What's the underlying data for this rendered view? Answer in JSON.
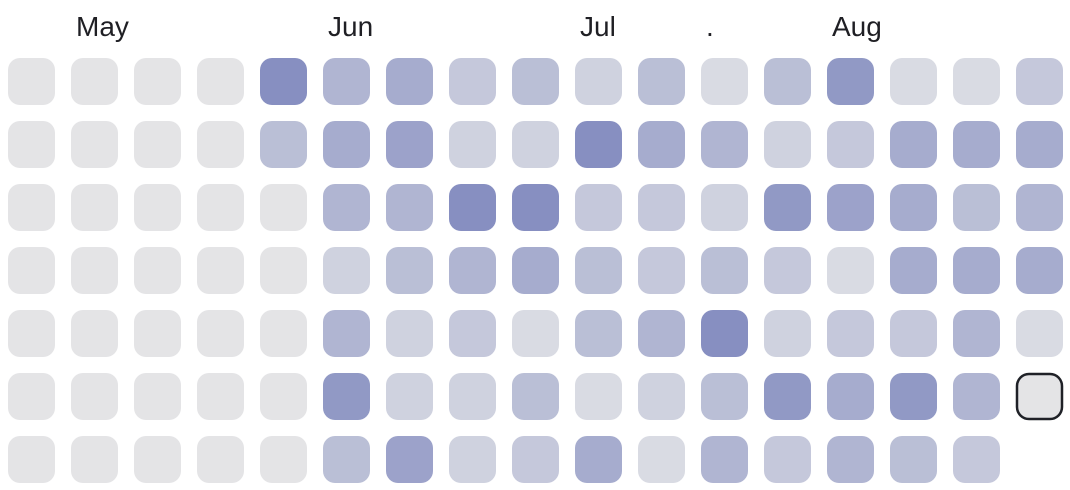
{
  "chart_data": {
    "type": "heatmap",
    "title": "",
    "xlabel": "",
    "ylabel": "",
    "legend": "none",
    "grid": false,
    "month_labels": [
      {
        "text": "May",
        "week": 1
      },
      {
        "text": "Jun",
        "week": 5
      },
      {
        "text": "Jul",
        "week": 9
      },
      {
        "text": ".",
        "week": 11
      },
      {
        "text": "Aug",
        "week": 13
      }
    ],
    "week_count": 17,
    "day_count": 7,
    "value_scale": [
      0,
      10
    ],
    "weeks": [
      [
        0,
        0,
        0,
        0,
        0,
        0,
        0
      ],
      [
        0,
        0,
        0,
        0,
        0,
        0,
        0
      ],
      [
        0,
        0,
        0,
        0,
        0,
        0,
        0
      ],
      [
        0,
        0,
        0,
        0,
        0,
        0,
        0
      ],
      [
        9,
        4,
        0,
        0,
        0,
        0,
        0
      ],
      [
        5,
        6,
        5,
        2,
        5,
        8,
        4
      ],
      [
        6,
        7,
        5,
        4,
        2,
        2,
        7
      ],
      [
        3,
        2,
        9,
        5,
        3,
        2,
        2
      ],
      [
        4,
        2,
        9,
        6,
        1,
        4,
        3
      ],
      [
        2,
        9,
        3,
        4,
        4,
        1,
        6
      ],
      [
        4,
        6,
        3,
        3,
        5,
        2,
        1
      ],
      [
        1,
        5,
        2,
        4,
        9,
        4,
        5
      ],
      [
        4,
        2,
        8,
        3,
        2,
        8,
        3
      ],
      [
        8,
        3,
        7,
        1,
        3,
        6,
        5
      ],
      [
        1,
        6,
        6,
        6,
        3,
        8,
        4
      ],
      [
        1,
        6,
        4,
        6,
        5,
        5,
        3
      ],
      [
        3,
        6,
        5,
        6,
        1,
        0,
        null
      ]
    ],
    "selected_cell": {
      "week": 16,
      "day": 5
    },
    "colors": {
      "empty": "#e4e4e6",
      "low": "#d9dbe3",
      "high": "#7d86bd",
      "selected_border": "#1f2127"
    }
  }
}
